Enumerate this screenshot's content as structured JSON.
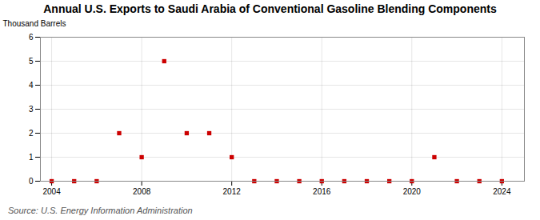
{
  "chart_data": {
    "type": "scatter",
    "title": "Annual U.S. Exports to Saudi Arabia of Conventional Gasoline Blending Components",
    "ylabel": "Thousand Barrels",
    "annotations": [
      "Source: U.S. Energy Information Administration"
    ],
    "x": [
      2004,
      2005,
      2006,
      2007,
      2008,
      2009,
      2010,
      2011,
      2012,
      2013,
      2014,
      2015,
      2016,
      2017,
      2018,
      2019,
      2020,
      2021,
      2022,
      2023,
      2024
    ],
    "values": [
      0,
      0,
      0,
      2,
      1,
      5,
      2,
      2,
      1,
      0,
      0,
      0,
      0,
      0,
      0,
      0,
      0,
      1,
      0,
      0,
      0
    ],
    "color": "#cc0000",
    "marker": "square",
    "xlim": [
      2003.5,
      2025.0
    ],
    "ylim": [
      0,
      6
    ],
    "xticks": [
      2004,
      2008,
      2012,
      2016,
      2020,
      2024
    ],
    "yticks": [
      0,
      1,
      2,
      3,
      4,
      5,
      6
    ],
    "grid": true
  }
}
